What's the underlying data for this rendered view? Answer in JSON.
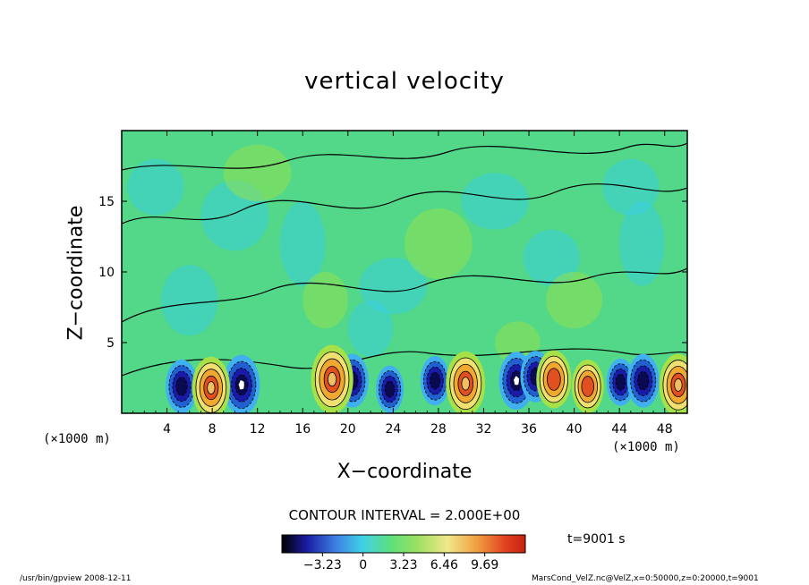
{
  "chart_data": {
    "type": "heatmap",
    "title": "vertical velocity",
    "xlabel": "X−coordinate",
    "ylabel": "Z−coordinate",
    "x_unit": "(×1000 m)",
    "x_ticks": [
      4,
      8,
      12,
      16,
      20,
      24,
      28,
      32,
      36,
      40,
      44,
      48
    ],
    "y_ticks": [
      5,
      10,
      15
    ],
    "xlim": [
      0,
      50
    ],
    "ylim": [
      0,
      20
    ],
    "contour_interval": "CONTOUR INTERVAL = 2.000E+00",
    "colorbar_ticks": [
      "−3.23",
      "0",
      "3.23",
      "6.46",
      "9.69"
    ],
    "colorbar_range": [
      -6.46,
      12.92
    ],
    "time": "t=9001 s",
    "updrafts": [
      {
        "x": 7.9,
        "z": 1.8,
        "w": 7.0
      },
      {
        "x": 18.6,
        "z": 2.4,
        "w": 8.5
      },
      {
        "x": 30.4,
        "z": 2.1,
        "w": 7.5
      },
      {
        "x": 38.2,
        "z": 2.4,
        "w": 6.0
      },
      {
        "x": 41.2,
        "z": 1.9,
        "w": 5.0
      },
      {
        "x": 49.2,
        "z": 2.0,
        "w": 7.0
      }
    ],
    "downdrafts": [
      {
        "x": 5.3,
        "z": 1.9,
        "w": -5.0
      },
      {
        "x": 10.6,
        "z": 2.0,
        "w": -6.5
      },
      {
        "x": 20.4,
        "z": 2.3,
        "w": -5.0
      },
      {
        "x": 23.7,
        "z": 1.7,
        "w": -3.5
      },
      {
        "x": 27.7,
        "z": 2.3,
        "w": -4.0
      },
      {
        "x": 34.9,
        "z": 2.3,
        "w": -6.0
      },
      {
        "x": 36.6,
        "z": 2.6,
        "w": -4.5
      },
      {
        "x": 44.1,
        "z": 2.2,
        "w": -3.5
      },
      {
        "x": 46.1,
        "z": 2.3,
        "w": -5.0
      }
    ]
  },
  "footer": {
    "left": "/usr/bin/gpview   2008-12-11",
    "right": "MarsCond_VelZ.nc@VelZ,x=0:50000,z=0:20000,t=9001"
  }
}
